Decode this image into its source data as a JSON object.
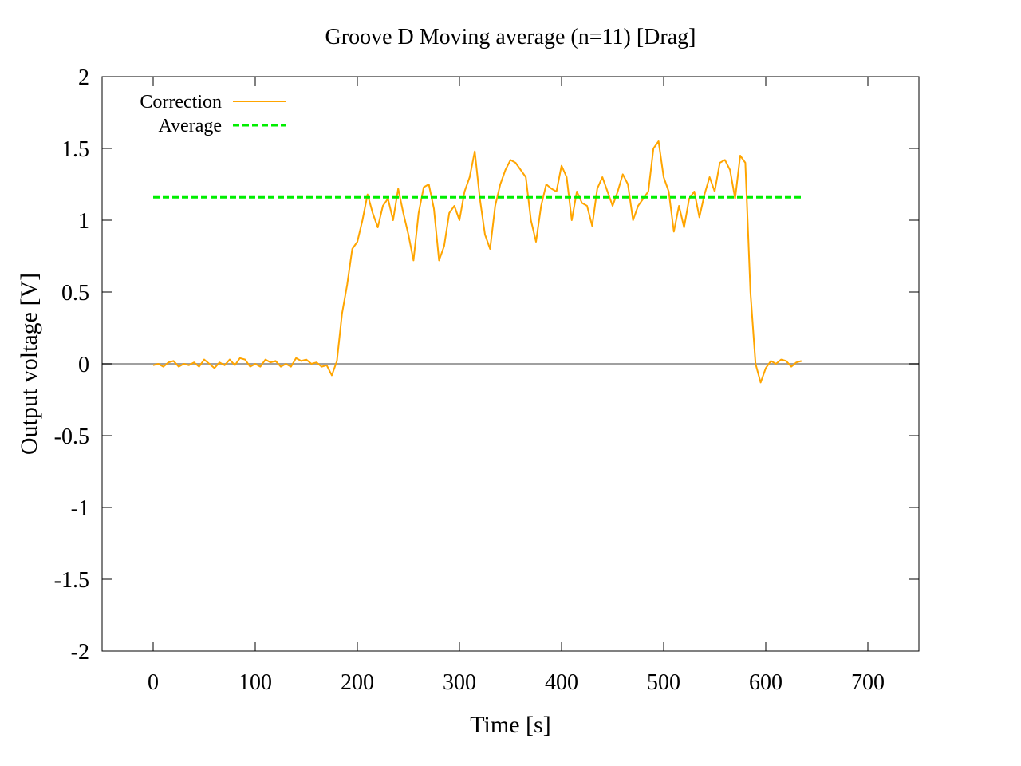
{
  "chart_data": {
    "type": "line",
    "title": "Groove D  Moving average (n=11) [Drag]",
    "xlabel": "Time [s]",
    "ylabel": "Output voltage [V]",
    "xlim": [
      -50,
      750
    ],
    "ylim": [
      -2,
      2
    ],
    "xticks": [
      0,
      100,
      200,
      300,
      400,
      500,
      600,
      700
    ],
    "yticks": [
      2,
      1.5,
      1,
      0.5,
      0,
      -0.5,
      -1,
      -1.5,
      -2
    ],
    "grid": false,
    "zero_line": true,
    "legend_position": "top-left",
    "series": [
      {
        "name": "Correction",
        "color": "#FFA500",
        "style": "solid",
        "points": [
          [
            0,
            -0.01
          ],
          [
            5,
            0.0
          ],
          [
            10,
            -0.02
          ],
          [
            15,
            0.01
          ],
          [
            20,
            0.02
          ],
          [
            25,
            -0.02
          ],
          [
            30,
            0.0
          ],
          [
            35,
            -0.01
          ],
          [
            40,
            0.01
          ],
          [
            45,
            -0.02
          ],
          [
            50,
            0.03
          ],
          [
            55,
            0.0
          ],
          [
            60,
            -0.03
          ],
          [
            65,
            0.01
          ],
          [
            70,
            -0.01
          ],
          [
            75,
            0.03
          ],
          [
            80,
            -0.01
          ],
          [
            85,
            0.04
          ],
          [
            90,
            0.03
          ],
          [
            95,
            -0.02
          ],
          [
            100,
            0.0
          ],
          [
            105,
            -0.02
          ],
          [
            110,
            0.03
          ],
          [
            115,
            0.01
          ],
          [
            120,
            0.02
          ],
          [
            125,
            -0.02
          ],
          [
            130,
            0.0
          ],
          [
            135,
            -0.02
          ],
          [
            140,
            0.04
          ],
          [
            145,
            0.02
          ],
          [
            150,
            0.03
          ],
          [
            155,
            0.0
          ],
          [
            160,
            0.01
          ],
          [
            165,
            -0.02
          ],
          [
            170,
            -0.01
          ],
          [
            175,
            -0.08
          ],
          [
            180,
            0.02
          ],
          [
            185,
            0.35
          ],
          [
            190,
            0.55
          ],
          [
            195,
            0.8
          ],
          [
            200,
            0.85
          ],
          [
            205,
            1.0
          ],
          [
            210,
            1.18
          ],
          [
            215,
            1.05
          ],
          [
            220,
            0.95
          ],
          [
            225,
            1.1
          ],
          [
            230,
            1.15
          ],
          [
            235,
            1.0
          ],
          [
            240,
            1.22
          ],
          [
            245,
            1.05
          ],
          [
            250,
            0.9
          ],
          [
            255,
            0.72
          ],
          [
            260,
            1.05
          ],
          [
            265,
            1.23
          ],
          [
            270,
            1.25
          ],
          [
            275,
            1.08
          ],
          [
            280,
            0.72
          ],
          [
            285,
            0.82
          ],
          [
            290,
            1.05
          ],
          [
            295,
            1.1
          ],
          [
            300,
            1.0
          ],
          [
            305,
            1.2
          ],
          [
            310,
            1.3
          ],
          [
            315,
            1.48
          ],
          [
            320,
            1.15
          ],
          [
            325,
            0.9
          ],
          [
            330,
            0.8
          ],
          [
            335,
            1.1
          ],
          [
            340,
            1.25
          ],
          [
            345,
            1.35
          ],
          [
            350,
            1.42
          ],
          [
            355,
            1.4
          ],
          [
            360,
            1.35
          ],
          [
            365,
            1.3
          ],
          [
            370,
            1.0
          ],
          [
            375,
            0.85
          ],
          [
            380,
            1.1
          ],
          [
            385,
            1.25
          ],
          [
            390,
            1.22
          ],
          [
            395,
            1.2
          ],
          [
            400,
            1.38
          ],
          [
            405,
            1.3
          ],
          [
            410,
            1.0
          ],
          [
            415,
            1.2
          ],
          [
            420,
            1.12
          ],
          [
            425,
            1.1
          ],
          [
            430,
            0.96
          ],
          [
            435,
            1.22
          ],
          [
            440,
            1.3
          ],
          [
            445,
            1.2
          ],
          [
            450,
            1.1
          ],
          [
            455,
            1.2
          ],
          [
            460,
            1.32
          ],
          [
            465,
            1.25
          ],
          [
            470,
            1.0
          ],
          [
            475,
            1.1
          ],
          [
            480,
            1.15
          ],
          [
            485,
            1.2
          ],
          [
            490,
            1.5
          ],
          [
            495,
            1.55
          ],
          [
            500,
            1.3
          ],
          [
            505,
            1.2
          ],
          [
            510,
            0.92
          ],
          [
            515,
            1.1
          ],
          [
            520,
            0.95
          ],
          [
            525,
            1.15
          ],
          [
            530,
            1.2
          ],
          [
            535,
            1.02
          ],
          [
            540,
            1.18
          ],
          [
            545,
            1.3
          ],
          [
            550,
            1.2
          ],
          [
            555,
            1.4
          ],
          [
            560,
            1.42
          ],
          [
            565,
            1.35
          ],
          [
            570,
            1.15
          ],
          [
            575,
            1.45
          ],
          [
            580,
            1.4
          ],
          [
            585,
            0.5
          ],
          [
            590,
            0.0
          ],
          [
            595,
            -0.13
          ],
          [
            600,
            -0.03
          ],
          [
            605,
            0.02
          ],
          [
            610,
            0.0
          ],
          [
            615,
            0.03
          ],
          [
            620,
            0.02
          ],
          [
            625,
            -0.02
          ],
          [
            630,
            0.01
          ],
          [
            635,
            0.02
          ]
        ]
      },
      {
        "name": "Average",
        "color": "#00EE00",
        "style": "dashed",
        "points": [
          [
            0,
            1.16
          ],
          [
            635,
            1.16
          ]
        ]
      }
    ]
  }
}
